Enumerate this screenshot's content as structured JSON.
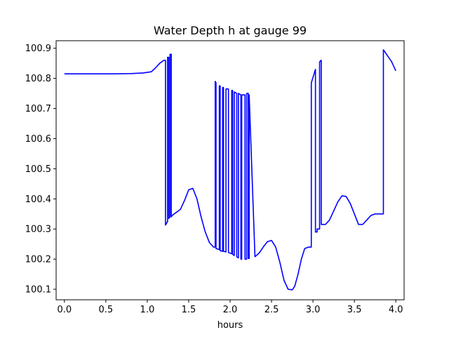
{
  "chart_data": {
    "type": "line",
    "title": "Water Depth h at gauge 99",
    "xlabel": "hours",
    "ylabel": "",
    "xlim": [
      -0.1,
      4.1
    ],
    "ylim": [
      100.065,
      100.925
    ],
    "x_ticks": [
      0.0,
      0.5,
      1.0,
      1.5,
      2.0,
      2.5,
      3.0,
      3.5,
      4.0
    ],
    "x_tick_labels": [
      "0.0",
      "0.5",
      "1.0",
      "1.5",
      "2.0",
      "2.5",
      "3.0",
      "3.5",
      "4.0"
    ],
    "y_ticks": [
      100.1,
      100.2,
      100.3,
      100.4,
      100.5,
      100.6,
      100.7,
      100.8,
      100.9
    ],
    "y_tick_labels": [
      "100.1",
      "100.2",
      "100.3",
      "100.4",
      "100.5",
      "100.6",
      "100.7",
      "100.8",
      "100.9"
    ],
    "grid": false,
    "series": [
      {
        "color": "#0000ff",
        "x": [
          0.0,
          0.2,
          0.4,
          0.6,
          0.8,
          0.95,
          1.05,
          1.1,
          1.15,
          1.2,
          1.22,
          1.22,
          1.245,
          1.245,
          1.26,
          1.26,
          1.275,
          1.275,
          1.29,
          1.29,
          1.3,
          1.35,
          1.4,
          1.45,
          1.5,
          1.55,
          1.6,
          1.65,
          1.7,
          1.75,
          1.8,
          1.82,
          1.82,
          1.83,
          1.83,
          1.87,
          1.87,
          1.88,
          1.88,
          1.91,
          1.91,
          1.92,
          1.92,
          1.95,
          1.95,
          1.98,
          1.98,
          2.02,
          2.02,
          2.03,
          2.03,
          2.05,
          2.05,
          2.08,
          2.08,
          2.1,
          2.1,
          2.13,
          2.13,
          2.14,
          2.14,
          2.18,
          2.18,
          2.2,
          2.2,
          2.22,
          2.22,
          2.23,
          2.23,
          2.3,
          2.35,
          2.4,
          2.45,
          2.5,
          2.55,
          2.6,
          2.65,
          2.7,
          2.75,
          2.78,
          2.82,
          2.86,
          2.9,
          2.95,
          2.98,
          2.98,
          3.03,
          3.03,
          3.05,
          3.05,
          3.08,
          3.08,
          3.1,
          3.1,
          3.15,
          3.2,
          3.25,
          3.3,
          3.35,
          3.4,
          3.45,
          3.5,
          3.55,
          3.6,
          3.65,
          3.7,
          3.75,
          3.8,
          3.85,
          3.85,
          3.9,
          3.95,
          4.0
        ],
        "y": [
          100.815,
          100.815,
          100.815,
          100.815,
          100.816,
          100.818,
          100.822,
          100.835,
          100.85,
          100.86,
          100.86,
          100.313,
          100.325,
          100.87,
          100.87,
          100.335,
          100.34,
          100.88,
          100.88,
          100.34,
          100.345,
          100.355,
          100.365,
          100.395,
          100.43,
          100.435,
          100.4,
          100.34,
          100.29,
          100.255,
          100.24,
          100.24,
          100.79,
          100.785,
          100.235,
          100.232,
          100.775,
          100.775,
          100.228,
          100.226,
          100.77,
          100.77,
          100.226,
          100.224,
          100.765,
          100.765,
          100.222,
          100.218,
          100.76,
          100.76,
          100.216,
          100.212,
          100.755,
          100.75,
          100.208,
          100.204,
          100.75,
          100.745,
          100.2,
          100.2,
          100.745,
          100.745,
          100.2,
          100.2,
          100.75,
          100.75,
          100.202,
          100.202,
          100.745,
          100.208,
          100.22,
          100.24,
          100.258,
          100.262,
          100.24,
          100.19,
          100.13,
          100.1,
          100.098,
          100.11,
          100.15,
          100.2,
          100.235,
          100.24,
          100.24,
          100.785,
          100.83,
          100.29,
          100.29,
          100.3,
          100.3,
          100.855,
          100.86,
          100.315,
          100.315,
          100.33,
          100.36,
          100.39,
          100.41,
          100.408,
          100.385,
          100.35,
          100.315,
          100.315,
          100.33,
          100.345,
          100.35,
          100.35,
          100.35,
          100.895,
          100.875,
          100.855,
          100.825
        ]
      }
    ]
  }
}
